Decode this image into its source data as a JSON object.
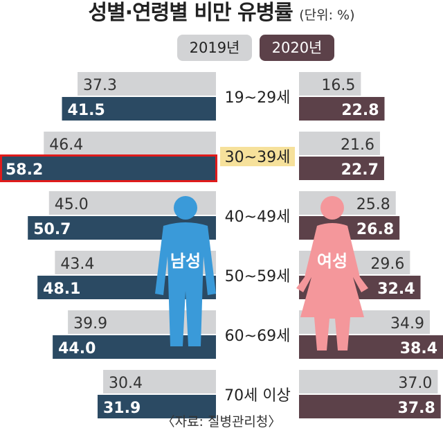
{
  "title": "성별·연령별 비만 유병률",
  "unit": "(단위: %)",
  "legend": {
    "y2019": "2019년",
    "y2020": "2020년"
  },
  "male_label": "남성",
  "female_label": "여성",
  "source": "〈자료: 질병관리청〉",
  "colors": {
    "bar_2019": "#d2d3d5",
    "male_2020": "#2b4a63",
    "female_2020": "#5c4149",
    "highlight": "#e01b1b",
    "male_figure": "#3a9ad9",
    "female_figure": "#f4979b"
  },
  "chart_data": {
    "type": "bar",
    "layout": "butterfly",
    "categories": [
      "19~29세",
      "30~39세",
      "40~49세",
      "50~59세",
      "60~69세",
      "70세 이상"
    ],
    "series": [
      {
        "name": "2019년",
        "group": "남성",
        "values": [
          37.3,
          46.4,
          45.0,
          43.4,
          39.9,
          30.4
        ]
      },
      {
        "name": "2020년",
        "group": "남성",
        "values": [
          41.5,
          58.2,
          50.7,
          48.1,
          44.0,
          31.9
        ]
      },
      {
        "name": "2019년",
        "group": "여성",
        "values": [
          16.5,
          21.6,
          25.8,
          29.6,
          34.9,
          37.0
        ]
      },
      {
        "name": "2020년",
        "group": "여성",
        "values": [
          22.8,
          22.7,
          26.8,
          32.4,
          38.4,
          37.8
        ]
      }
    ],
    "highlight": {
      "group": "남성",
      "series": "2020년",
      "category": "30~39세"
    }
  }
}
